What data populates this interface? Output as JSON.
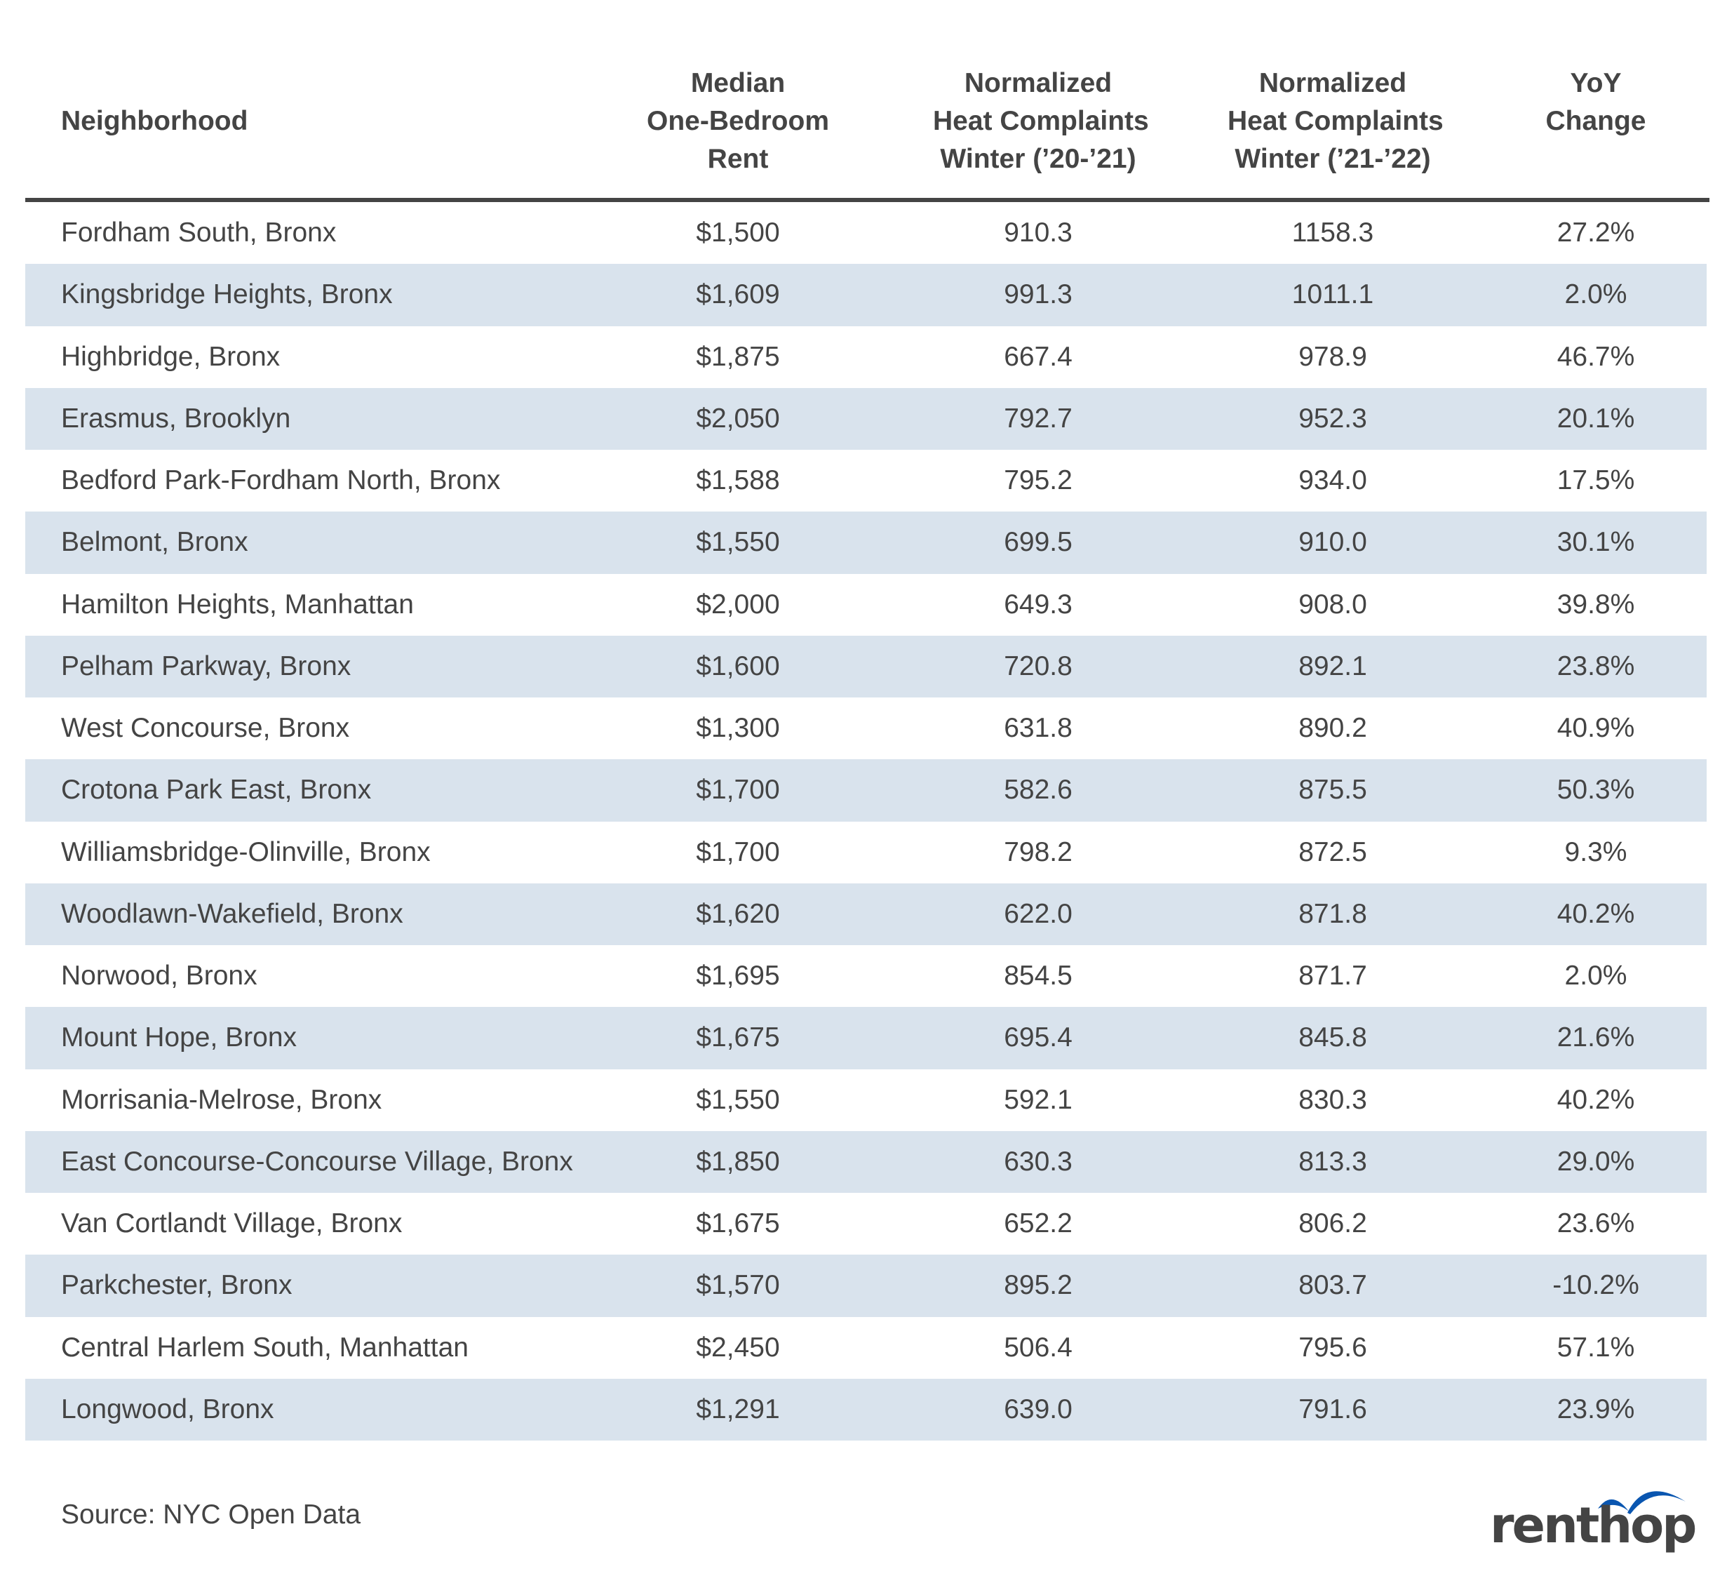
{
  "table": {
    "columns": [
      {
        "key": "neighborhood",
        "lines": [
          "Neighborhood"
        ]
      },
      {
        "key": "rent",
        "lines": [
          "Median",
          "One-Bedroom",
          "Rent"
        ]
      },
      {
        "key": "heat_20_21",
        "lines": [
          "Normalized",
          "Heat Complaints",
          "Winter (’20-’21)"
        ]
      },
      {
        "key": "heat_21_22",
        "lines": [
          "Normalized",
          "Heat Complaints",
          "Winter (’21-’22)"
        ]
      },
      {
        "key": "yoy",
        "lines": [
          "YoY",
          "Change"
        ]
      }
    ],
    "rows": [
      {
        "neighborhood": "Fordham South, Bronx",
        "rent": "$1,500",
        "heat_20_21": "910.3",
        "heat_21_22": "1158.3",
        "yoy": "27.2%"
      },
      {
        "neighborhood": "Kingsbridge Heights, Bronx",
        "rent": "$1,609",
        "heat_20_21": "991.3",
        "heat_21_22": "1011.1",
        "yoy": "2.0%"
      },
      {
        "neighborhood": "Highbridge, Bronx",
        "rent": "$1,875",
        "heat_20_21": "667.4",
        "heat_21_22": "978.9",
        "yoy": "46.7%"
      },
      {
        "neighborhood": "Erasmus, Brooklyn",
        "rent": "$2,050",
        "heat_20_21": "792.7",
        "heat_21_22": "952.3",
        "yoy": "20.1%"
      },
      {
        "neighborhood": "Bedford Park-Fordham North, Bronx",
        "rent": "$1,588",
        "heat_20_21": "795.2",
        "heat_21_22": "934.0",
        "yoy": "17.5%"
      },
      {
        "neighborhood": "Belmont, Bronx",
        "rent": "$1,550",
        "heat_20_21": "699.5",
        "heat_21_22": "910.0",
        "yoy": "30.1%"
      },
      {
        "neighborhood": "Hamilton Heights, Manhattan",
        "rent": "$2,000",
        "heat_20_21": "649.3",
        "heat_21_22": "908.0",
        "yoy": "39.8%"
      },
      {
        "neighborhood": "Pelham Parkway, Bronx",
        "rent": "$1,600",
        "heat_20_21": "720.8",
        "heat_21_22": "892.1",
        "yoy": "23.8%"
      },
      {
        "neighborhood": "West Concourse, Bronx",
        "rent": "$1,300",
        "heat_20_21": "631.8",
        "heat_21_22": "890.2",
        "yoy": "40.9%"
      },
      {
        "neighborhood": "Crotona Park East, Bronx",
        "rent": "$1,700",
        "heat_20_21": "582.6",
        "heat_21_22": "875.5",
        "yoy": "50.3%"
      },
      {
        "neighborhood": "Williamsbridge-Olinville, Bronx",
        "rent": "$1,700",
        "heat_20_21": "798.2",
        "heat_21_22": "872.5",
        "yoy": "9.3%"
      },
      {
        "neighborhood": "Woodlawn-Wakefield, Bronx",
        "rent": "$1,620",
        "heat_20_21": "622.0",
        "heat_21_22": "871.8",
        "yoy": "40.2%"
      },
      {
        "neighborhood": "Norwood, Bronx",
        "rent": "$1,695",
        "heat_20_21": "854.5",
        "heat_21_22": "871.7",
        "yoy": "2.0%"
      },
      {
        "neighborhood": "Mount Hope, Bronx",
        "rent": "$1,675",
        "heat_20_21": "695.4",
        "heat_21_22": "845.8",
        "yoy": "21.6%"
      },
      {
        "neighborhood": "Morrisania-Melrose, Bronx",
        "rent": "$1,550",
        "heat_20_21": "592.1",
        "heat_21_22": "830.3",
        "yoy": "40.2%"
      },
      {
        "neighborhood": "East Concourse-Concourse Village, Bronx",
        "rent": "$1,850",
        "heat_20_21": "630.3",
        "heat_21_22": "813.3",
        "yoy": "29.0%"
      },
      {
        "neighborhood": "Van Cortlandt Village, Bronx",
        "rent": "$1,675",
        "heat_20_21": "652.2",
        "heat_21_22": "806.2",
        "yoy": "23.6%"
      },
      {
        "neighborhood": "Parkchester, Bronx",
        "rent": "$1,570",
        "heat_20_21": "895.2",
        "heat_21_22": "803.7",
        "yoy": "-10.2%"
      },
      {
        "neighborhood": "Central Harlem South, Manhattan",
        "rent": "$2,450",
        "heat_20_21": "506.4",
        "heat_21_22": "795.6",
        "yoy": "57.1%"
      },
      {
        "neighborhood": "Longwood, Bronx",
        "rent": "$1,291",
        "heat_20_21": "639.0",
        "heat_21_22": "791.6",
        "yoy": "23.9%"
      }
    ]
  },
  "footer": {
    "source": "Source: NYC Open Data",
    "logo_text": "renthop"
  },
  "colors": {
    "text": "#444444",
    "rule": "#444444",
    "stripe": "#d9e3ed",
    "logo_accent": "#0a56b0"
  }
}
